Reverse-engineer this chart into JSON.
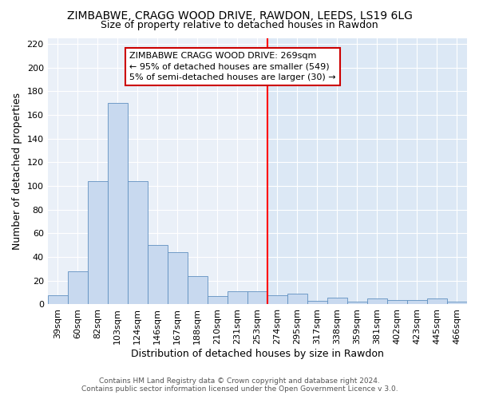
{
  "title1": "ZIMBABWE, CRAGG WOOD DRIVE, RAWDON, LEEDS, LS19 6LG",
  "title2": "Size of property relative to detached houses in Rawdon",
  "xlabel": "Distribution of detached houses by size in Rawdon",
  "ylabel": "Number of detached properties",
  "categories": [
    "39sqm",
    "60sqm",
    "82sqm",
    "103sqm",
    "124sqm",
    "146sqm",
    "167sqm",
    "188sqm",
    "210sqm",
    "231sqm",
    "253sqm",
    "274sqm",
    "295sqm",
    "317sqm",
    "338sqm",
    "359sqm",
    "381sqm",
    "402sqm",
    "423sqm",
    "445sqm",
    "466sqm"
  ],
  "values": [
    8,
    28,
    104,
    170,
    104,
    50,
    44,
    24,
    7,
    11,
    11,
    8,
    9,
    3,
    6,
    2,
    5,
    4,
    4,
    5,
    2
  ],
  "bar_color": "#c8d9ef",
  "bar_edge_color": "#6090c0",
  "vline_index": 11,
  "annotation_text": "ZIMBABWE CRAGG WOOD DRIVE: 269sqm\n← 95% of detached houses are smaller (549)\n5% of semi-detached houses are larger (30) →",
  "annotation_box_color": "#cc0000",
  "plot_bg_color": "#eaf0f8",
  "right_shade_color": "#dce8f5",
  "ylim": [
    0,
    225
  ],
  "yticks": [
    0,
    20,
    40,
    60,
    80,
    100,
    120,
    140,
    160,
    180,
    200,
    220
  ],
  "footer_text": "Contains HM Land Registry data © Crown copyright and database right 2024.\nContains public sector information licensed under the Open Government Licence v 3.0.",
  "title1_fontsize": 10,
  "title2_fontsize": 9,
  "xlabel_fontsize": 9,
  "ylabel_fontsize": 9,
  "tick_fontsize": 8,
  "annot_fontsize": 8
}
